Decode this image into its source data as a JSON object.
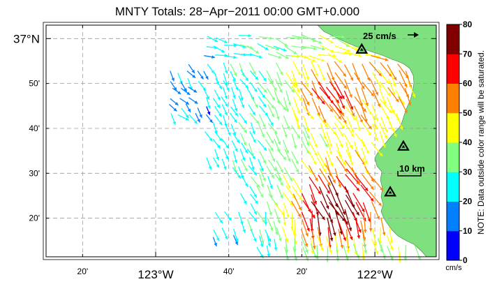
{
  "title": "MNTY Totals: 28−Apr−2011 00:00 GMT+0.000",
  "map": {
    "lon_labels": [
      {
        "lon": -123.333333,
        "text": "20'",
        "major": false
      },
      {
        "lon": -123.0,
        "text": "123°W",
        "major": true
      },
      {
        "lon": -122.666667,
        "text": "40'",
        "major": false
      },
      {
        "lon": -122.333333,
        "text": "20'",
        "major": false
      },
      {
        "lon": -122.0,
        "text": "122°W",
        "major": true
      }
    ],
    "lat_labels": [
      {
        "lat": 37.0,
        "text": "37°N",
        "major": true
      },
      {
        "lat": 36.833333,
        "text": "50'",
        "major": false
      },
      {
        "lat": 36.666667,
        "text": "40'",
        "major": false
      },
      {
        "lat": 36.5,
        "text": "30'",
        "major": false
      },
      {
        "lat": 36.333333,
        "text": "20'",
        "major": false
      }
    ],
    "reference_vector_label": "25 cm/s",
    "scale_bar_label": "10 km",
    "stations": [
      {
        "lon": -122.06,
        "lat": 36.96
      },
      {
        "lon": -121.87,
        "lat": 36.6
      },
      {
        "lon": -121.93,
        "lat": 36.43
      }
    ],
    "colors": {
      "land": "#7ee07e",
      "ocean": "#ffffff",
      "grid": "#9a9a9a"
    }
  },
  "colorbar": {
    "ticks": [
      "0",
      "10",
      "20",
      "30",
      "40",
      "50",
      "60",
      "70",
      "80"
    ],
    "colors": [
      "#0000ff",
      "#0080ff",
      "#00ffff",
      "#80ff80",
      "#ffff00",
      "#ff8000",
      "#ff0000",
      "#800000"
    ],
    "unit": "cm/s",
    "note": "NOTE: Data outside color range will be saturated."
  }
}
